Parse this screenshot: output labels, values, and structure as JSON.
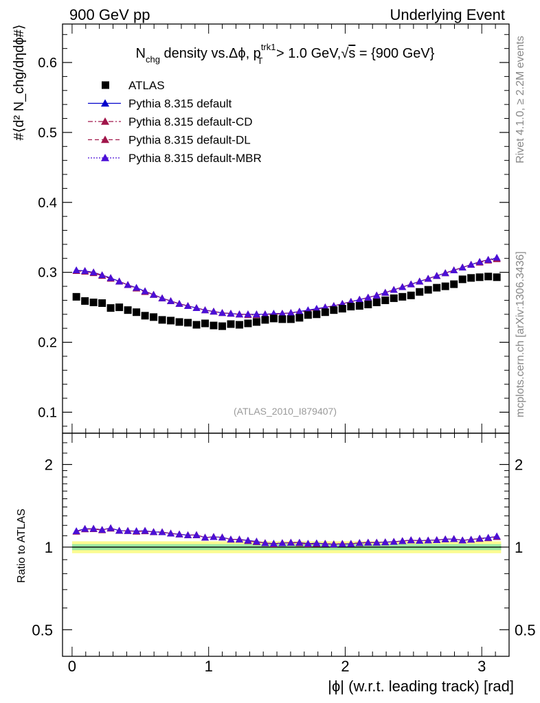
{
  "header": {
    "left": "900 GeV pp",
    "right": "Underlying Event"
  },
  "side": {
    "rivet": "Rivet 4.1.0, ≥ 2.2M events",
    "mcplots": "mcplots.cern.ch [arXiv:1306.3436]"
  },
  "chart_data": [
    {
      "type": "scatter",
      "panel": "main",
      "title_parts": {
        "n": "N",
        "n_sub": "chg",
        "mid": " density vs.Δϕ, p",
        "p_sup": "trk1",
        "p_sub": "T",
        "tail": " > 1.0 GeV,",
        "sqrt": "√",
        "s": "s",
        "end": " = {900 GeV}"
      },
      "ylabel": "#⟨d² N_chg/dηdϕ#⟩",
      "ylim": [
        0.07,
        0.655
      ],
      "xlim": [
        -0.07,
        3.2
      ],
      "yticks": [
        0.1,
        0.2,
        0.3,
        0.4,
        0.5,
        0.6
      ],
      "ytick_labels": [
        "0.1",
        "0.2",
        "0.3",
        "0.4",
        "0.5",
        "0.6"
      ],
      "watermark": "(ATLAS_2010_I879407)",
      "x": [
        0.0314,
        0.0942,
        0.1571,
        0.2199,
        0.2827,
        0.3456,
        0.4084,
        0.4712,
        0.5341,
        0.5969,
        0.6597,
        0.7226,
        0.7854,
        0.8482,
        0.9111,
        0.9739,
        1.0367,
        1.0996,
        1.1624,
        1.2252,
        1.2881,
        1.3509,
        1.4137,
        1.4765,
        1.5394,
        1.6022,
        1.665,
        1.7279,
        1.7907,
        1.8535,
        1.9164,
        1.9792,
        2.042,
        2.1049,
        2.1677,
        2.2305,
        2.2934,
        2.3562,
        2.419,
        2.4819,
        2.5447,
        2.6075,
        2.6704,
        2.7332,
        2.796,
        2.8589,
        2.9217,
        2.9845,
        3.0474,
        3.1102
      ],
      "legend": [
        {
          "label": "ATLAS",
          "color": "#000000",
          "marker": "square",
          "line": "none"
        },
        {
          "label": "Pythia 8.315 default",
          "color": "#0000cc",
          "marker": "triangle",
          "line": "solid"
        },
        {
          "label": "Pythia 8.315 default-CD",
          "color": "#a0154a",
          "marker": "triangle",
          "line": "dashdot"
        },
        {
          "label": "Pythia 8.315 default-DL",
          "color": "#a0154a",
          "marker": "triangle",
          "line": "dashed"
        },
        {
          "label": "Pythia 8.315 default-MBR",
          "color": "#4b0fd6",
          "marker": "triangle",
          "line": "dotted"
        }
      ],
      "series": [
        {
          "name": "ATLAS",
          "values": [
            0.265,
            0.259,
            0.257,
            0.256,
            0.249,
            0.25,
            0.246,
            0.243,
            0.238,
            0.236,
            0.232,
            0.231,
            0.229,
            0.228,
            0.225,
            0.227,
            0.224,
            0.223,
            0.226,
            0.225,
            0.227,
            0.229,
            0.232,
            0.234,
            0.233,
            0.233,
            0.235,
            0.239,
            0.24,
            0.243,
            0.246,
            0.248,
            0.251,
            0.252,
            0.254,
            0.257,
            0.26,
            0.263,
            0.265,
            0.267,
            0.272,
            0.275,
            0.278,
            0.28,
            0.283,
            0.29,
            0.292,
            0.293,
            0.294,
            0.293
          ]
        },
        {
          "name": "Pythia 8.315 default",
          "values": [
            0.303,
            0.302,
            0.3,
            0.296,
            0.292,
            0.287,
            0.282,
            0.278,
            0.273,
            0.268,
            0.263,
            0.259,
            0.255,
            0.252,
            0.249,
            0.246,
            0.244,
            0.242,
            0.241,
            0.24,
            0.24,
            0.24,
            0.24,
            0.241,
            0.241,
            0.242,
            0.244,
            0.246,
            0.248,
            0.25,
            0.252,
            0.255,
            0.258,
            0.261,
            0.264,
            0.267,
            0.271,
            0.275,
            0.279,
            0.283,
            0.287,
            0.291,
            0.295,
            0.299,
            0.303,
            0.307,
            0.311,
            0.315,
            0.318,
            0.32
          ]
        },
        {
          "name": "Pythia 8.315 default-CD",
          "values": [
            0.302,
            0.301,
            0.299,
            0.295,
            0.291,
            0.287,
            0.282,
            0.277,
            0.272,
            0.268,
            0.263,
            0.259,
            0.255,
            0.252,
            0.249,
            0.246,
            0.244,
            0.242,
            0.241,
            0.24,
            0.239,
            0.239,
            0.24,
            0.24,
            0.241,
            0.242,
            0.243,
            0.245,
            0.247,
            0.25,
            0.252,
            0.255,
            0.258,
            0.261,
            0.264,
            0.267,
            0.271,
            0.275,
            0.279,
            0.283,
            0.287,
            0.291,
            0.295,
            0.299,
            0.303,
            0.307,
            0.311,
            0.314,
            0.317,
            0.319
          ]
        },
        {
          "name": "Pythia 8.315 default-DL",
          "values": [
            0.302,
            0.302,
            0.3,
            0.296,
            0.292,
            0.287,
            0.282,
            0.277,
            0.273,
            0.268,
            0.263,
            0.259,
            0.255,
            0.252,
            0.249,
            0.246,
            0.244,
            0.242,
            0.241,
            0.24,
            0.24,
            0.24,
            0.24,
            0.24,
            0.241,
            0.242,
            0.244,
            0.245,
            0.247,
            0.25,
            0.252,
            0.255,
            0.258,
            0.261,
            0.264,
            0.267,
            0.271,
            0.275,
            0.279,
            0.283,
            0.287,
            0.291,
            0.295,
            0.299,
            0.303,
            0.307,
            0.311,
            0.315,
            0.318,
            0.32
          ]
        },
        {
          "name": "Pythia 8.315 default-MBR",
          "values": [
            0.303,
            0.302,
            0.3,
            0.296,
            0.292,
            0.287,
            0.282,
            0.278,
            0.273,
            0.268,
            0.263,
            0.259,
            0.255,
            0.252,
            0.249,
            0.246,
            0.244,
            0.242,
            0.241,
            0.24,
            0.24,
            0.24,
            0.24,
            0.241,
            0.241,
            0.242,
            0.244,
            0.246,
            0.248,
            0.25,
            0.252,
            0.255,
            0.258,
            0.261,
            0.264,
            0.267,
            0.271,
            0.275,
            0.279,
            0.283,
            0.287,
            0.291,
            0.295,
            0.299,
            0.303,
            0.307,
            0.311,
            0.315,
            0.318,
            0.321
          ]
        }
      ]
    },
    {
      "type": "line",
      "panel": "ratio",
      "ylabel": "Ratio to ATLAS",
      "xlabel": "|ϕ| (w.r.t. leading track) [rad]",
      "yscale": "log",
      "ylim": [
        0.4,
        2.6
      ],
      "yticks": [
        0.5,
        1,
        2
      ],
      "ytick_labels": [
        "0.5",
        "1",
        "2"
      ],
      "xticks": [
        0,
        1,
        2,
        3
      ],
      "xtick_labels": [
        "0",
        "1",
        "2",
        "3"
      ],
      "band_outer": [
        0.95,
        1.05
      ],
      "band_inner": [
        0.975,
        1.025
      ],
      "band_colors": {
        "outer": "#fbfb91",
        "inner": "#9be7a2"
      },
      "reference": 1.0,
      "series_ref": "ratio computed as each Pythia series divided by ATLAS"
    }
  ]
}
